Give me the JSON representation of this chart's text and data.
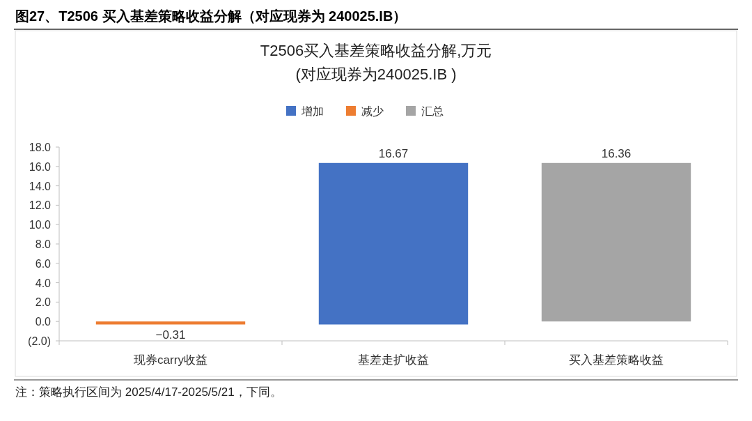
{
  "chart_data": {
    "type": "bar",
    "title": "图27、T2506 买入基差策略收益分解（对应现券为 240025.IB）",
    "subtitle": "T2506买入基差策略收益分解,万元\n(对应现券为240025.IB )",
    "categories": [
      "现券carry收益",
      "基差走扩收益",
      "买入基差策略收益"
    ],
    "series": [
      {
        "name": "增加",
        "color": "#4472c4",
        "values": [
          null,
          16.67,
          null
        ],
        "base": [
          null,
          -0.31,
          null
        ],
        "value_labels": [
          null,
          "16.67",
          null
        ]
      },
      {
        "name": "减少",
        "color": "#ed7d31",
        "values": [
          -0.31,
          null,
          null
        ],
        "base": [
          0,
          null,
          null
        ],
        "value_labels": [
          "−0.31",
          null,
          null
        ]
      },
      {
        "name": "汇总",
        "color": "#a5a5a5",
        "values": [
          null,
          null,
          16.36
        ],
        "base": [
          null,
          null,
          0
        ],
        "value_labels": [
          null,
          null,
          "16.36"
        ]
      }
    ],
    "ylim": [
      -2,
      18
    ],
    "yticks": [
      {
        "value": -2,
        "label": "(2.0)"
      },
      {
        "value": 0,
        "label": "0.0"
      },
      {
        "value": 2,
        "label": "2.0"
      },
      {
        "value": 4,
        "label": "4.0"
      },
      {
        "value": 6,
        "label": "6.0"
      },
      {
        "value": 8,
        "label": "8.0"
      },
      {
        "value": 10,
        "label": "10.0"
      },
      {
        "value": 12,
        "label": "12.0"
      },
      {
        "value": 14,
        "label": "14.0"
      },
      {
        "value": 16,
        "label": "16.0"
      },
      {
        "value": 18,
        "label": "18.0"
      }
    ],
    "legend": "top",
    "annotations": [
      "注：策略执行区间为 2025/4/17-2025/5/21，下同。"
    ]
  }
}
